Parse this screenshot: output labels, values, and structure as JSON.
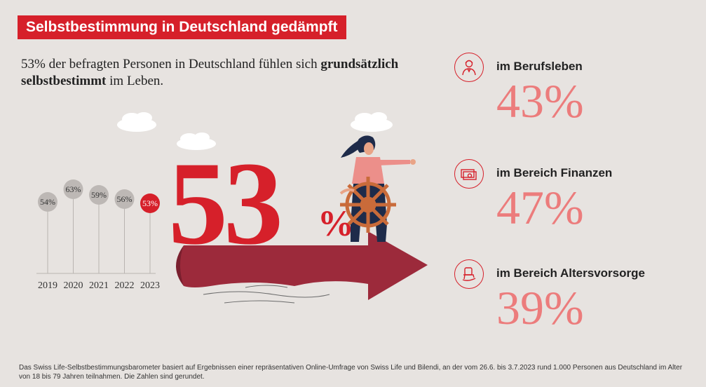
{
  "title": "Selbstbestimmung in Deutschland gedämpft",
  "intro": {
    "part1": "53% der befragten Personen in Deutschland fühlen sich ",
    "bold": "grundsätzlich selbstbestimmt",
    "part2": " im Leben."
  },
  "headline": {
    "value": "53",
    "unit": "%"
  },
  "chart_data": {
    "type": "scatter",
    "categories": [
      "2019",
      "2020",
      "2021",
      "2022",
      "2023"
    ],
    "values": [
      54,
      63,
      59,
      56,
      53
    ],
    "labels": [
      "54%",
      "63%",
      "59%",
      "56%",
      "53%"
    ],
    "ylim": [
      50,
      65
    ],
    "highlight_index": 4,
    "colors": {
      "default": "#bdb8b5",
      "highlight": "#d6202a",
      "stem": "#b9b4b1"
    }
  },
  "stats": [
    {
      "label": "im Berufsleben",
      "value": "43%",
      "icon": "person-icon"
    },
    {
      "label": "im Bereich Finanzen",
      "value": "47%",
      "icon": "banknote-icon"
    },
    {
      "label": "im Bereich Altersvorsorge",
      "value": "39%",
      "icon": "rocking-chair-icon"
    }
  ],
  "footer": "Das Swiss Life-Selbstbestimmungsbarometer basiert auf Ergebnissen einer repräsentativen Online-Umfrage von Swiss Life und Bilendi, an der vom 26.6. bis 3.7.2023 rund 1.000 Personen aus Deutschland im Alter von 18 bis 79 Jahren teilnahmen. Die Zahlen sind gerundet.",
  "colors": {
    "accent": "#d6202a",
    "stat": "#ec7c7c",
    "arrow": "#9c2a3b",
    "background": "#e7e3e0"
  }
}
